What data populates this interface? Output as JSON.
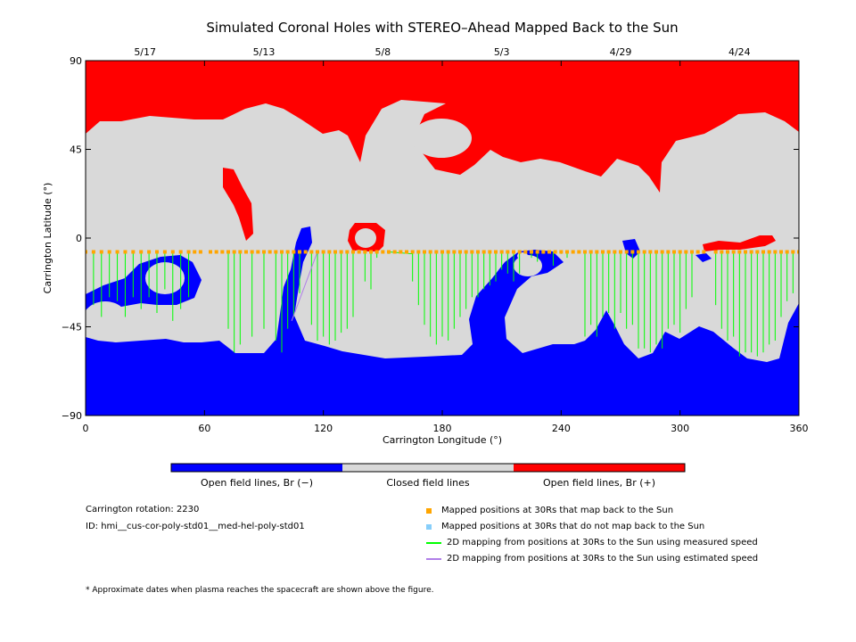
{
  "chart_data": {
    "type": "map",
    "title": "Simulated Coronal Holes with STEREO–Ahead Mapped Back to the Sun",
    "xlabel": "Carrington Longitude (°)",
    "ylabel": "Carrington Latitude (°)",
    "xlim": [
      0,
      360
    ],
    "ylim": [
      -90,
      90
    ],
    "x_ticks": [
      "0",
      "60",
      "120",
      "180",
      "240",
      "300",
      "360"
    ],
    "y_ticks": [
      "90",
      "45",
      "0",
      "−45",
      "−90"
    ],
    "top_dates": [
      {
        "label": "5/17",
        "lon": 30
      },
      {
        "label": "5/13",
        "lon": 90
      },
      {
        "label": "5/8",
        "lon": 150
      },
      {
        "label": "5/3",
        "lon": 210
      },
      {
        "label": "4/29",
        "lon": 270
      },
      {
        "label": "4/24",
        "lon": 330
      }
    ],
    "colors": {
      "open_negative": "#0000ff",
      "closed": "#d9d9d9",
      "open_positive": "#ff0000",
      "mapped_point": "#ffa500",
      "unmapped_point": "#87cefa",
      "measured_line": "#00ff00",
      "estimated_line": "#b07fe8"
    },
    "colorbar_labels": [
      "Open field lines, Br (−)",
      "Closed field lines",
      "Open field lines, Br (+)"
    ],
    "mapped_points_lat": -7,
    "mapped_points_lon": [
      0,
      4,
      8,
      12,
      16,
      20,
      24,
      28,
      32,
      36,
      40,
      44,
      48,
      52,
      55,
      58,
      63,
      66,
      69,
      72,
      75,
      78,
      81,
      84,
      87,
      90,
      93,
      96,
      99,
      102,
      105,
      108,
      111,
      114,
      117,
      120,
      123,
      126,
      129,
      132,
      135,
      138,
      141,
      144,
      147,
      150,
      153,
      156,
      159,
      162,
      165,
      168,
      171,
      174,
      177,
      180,
      183,
      186,
      189,
      192,
      195,
      198,
      201,
      204,
      207,
      210,
      213,
      216,
      219,
      222,
      225,
      228,
      231,
      234,
      237,
      240,
      243,
      246,
      249,
      252,
      255,
      258,
      261,
      264,
      267,
      270,
      273,
      276,
      279,
      282,
      285,
      288,
      291,
      294,
      297,
      300,
      303,
      306,
      309,
      312,
      318,
      321,
      324,
      327,
      330,
      333,
      336,
      339,
      342,
      345,
      348,
      351,
      354,
      357,
      360
    ],
    "measured_mappings": [
      [
        0,
        -24
      ],
      [
        4,
        -34
      ],
      [
        8,
        -40
      ],
      [
        12,
        -30
      ],
      [
        16,
        -32
      ],
      [
        20,
        -40
      ],
      [
        24,
        -30
      ],
      [
        28,
        -36
      ],
      [
        32,
        -30
      ],
      [
        36,
        -38
      ],
      [
        40,
        -26
      ],
      [
        44,
        -42
      ],
      [
        48,
        -36
      ],
      [
        52,
        -30
      ],
      [
        72,
        -46
      ],
      [
        75,
        -58
      ],
      [
        78,
        -54
      ],
      [
        84,
        -50
      ],
      [
        90,
        -46
      ],
      [
        96,
        -52
      ],
      [
        99,
        -58
      ],
      [
        102,
        -46
      ],
      [
        105,
        -40
      ],
      [
        108,
        -28
      ],
      [
        114,
        -44
      ],
      [
        117,
        -52
      ],
      [
        120,
        -50
      ],
      [
        123,
        -54
      ],
      [
        126,
        -52
      ],
      [
        129,
        -48
      ],
      [
        132,
        -46
      ],
      [
        135,
        -40
      ],
      [
        141,
        -22
      ],
      [
        144,
        -26
      ],
      [
        147,
        -10
      ],
      [
        153,
        -8
      ],
      [
        165,
        -22
      ],
      [
        168,
        -34
      ],
      [
        171,
        -44
      ],
      [
        174,
        -50
      ],
      [
        177,
        -54
      ],
      [
        180,
        -50
      ],
      [
        183,
        -52
      ],
      [
        186,
        -46
      ],
      [
        189,
        -40
      ],
      [
        192,
        -36
      ],
      [
        195,
        -30
      ],
      [
        198,
        -30
      ],
      [
        201,
        -26
      ],
      [
        204,
        -24
      ],
      [
        207,
        -22
      ],
      [
        210,
        -16
      ],
      [
        213,
        -18
      ],
      [
        216,
        -22
      ],
      [
        219,
        -18
      ],
      [
        225,
        -10
      ],
      [
        228,
        -12
      ],
      [
        231,
        -8
      ],
      [
        236,
        -14
      ],
      [
        240,
        -8
      ],
      [
        243,
        -10
      ],
      [
        252,
        -50
      ],
      [
        255,
        -44
      ],
      [
        258,
        -50
      ],
      [
        261,
        -40
      ],
      [
        264,
        -38
      ],
      [
        267,
        -46
      ],
      [
        270,
        -38
      ],
      [
        273,
        -46
      ],
      [
        276,
        -44
      ],
      [
        279,
        -56
      ],
      [
        282,
        -56
      ],
      [
        285,
        -58
      ],
      [
        288,
        -54
      ],
      [
        291,
        -56
      ],
      [
        294,
        -46
      ],
      [
        297,
        -44
      ],
      [
        300,
        -48
      ],
      [
        303,
        -36
      ],
      [
        306,
        -30
      ],
      [
        318,
        -34
      ],
      [
        321,
        -46
      ],
      [
        324,
        -52
      ],
      [
        327,
        -50
      ],
      [
        330,
        -60
      ],
      [
        333,
        -58
      ],
      [
        336,
        -58
      ],
      [
        339,
        -60
      ],
      [
        342,
        -58
      ],
      [
        345,
        -54
      ],
      [
        348,
        -52
      ],
      [
        351,
        -40
      ],
      [
        354,
        -32
      ],
      [
        357,
        -28
      ],
      [
        360,
        -20
      ],
      [
        153,
        -7,
        165,
        -8
      ]
    ],
    "estimated_mappings": [
      [
        117,
        -7,
        104,
        -42
      ]
    ],
    "carrington_rotation_label": "Carrington rotation: 2230",
    "id_label": "ID: hmi__cus-cor-poly-std01__med-hel-poly-std01",
    "legend": [
      {
        "marker": "square",
        "color": "#ffa500",
        "label": "Mapped positions at 30Rs that map back to the Sun"
      },
      {
        "marker": "square",
        "color": "#87cefa",
        "label": "Mapped positions at 30Rs that do not map back to the Sun"
      },
      {
        "marker": "line",
        "color": "#00ff00",
        "label": "2D mapping from positions at 30Rs to the Sun using measured speed"
      },
      {
        "marker": "line",
        "color": "#b07fe8",
        "label": "2D mapping from positions at 30Rs to the Sun using estimated speed"
      }
    ],
    "footnote": "* Approximate dates when plasma reaches the spacecraft are shown above the figure."
  }
}
